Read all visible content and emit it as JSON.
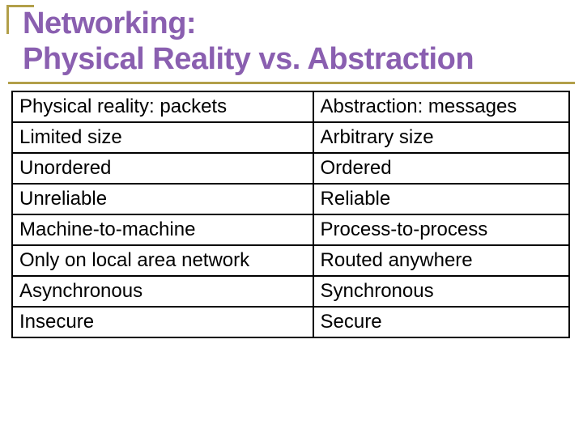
{
  "slide": {
    "title_line1": "Networking:",
    "title_line2": "Physical Reality vs. Abstraction"
  },
  "table": {
    "columns": [
      {
        "label": "Physical reality:  packets"
      },
      {
        "label": "Abstraction: messages"
      }
    ],
    "rows": [
      [
        "Limited size",
        "Arbitrary size"
      ],
      [
        "Unordered",
        "Ordered"
      ],
      [
        "Unreliable",
        "Reliable"
      ],
      [
        "Machine-to-machine",
        "Process-to-process"
      ],
      [
        "Only on local area network",
        "Routed anywhere"
      ],
      [
        "Asynchronous",
        "Synchronous"
      ],
      [
        "Insecure",
        "Secure"
      ]
    ]
  },
  "style": {
    "accent_color": "#b29f49",
    "title_color": "#8a5fb0",
    "border_color": "#000000",
    "background_color": "#ffffff",
    "title_fontsize": 38,
    "cell_fontsize": 24
  }
}
